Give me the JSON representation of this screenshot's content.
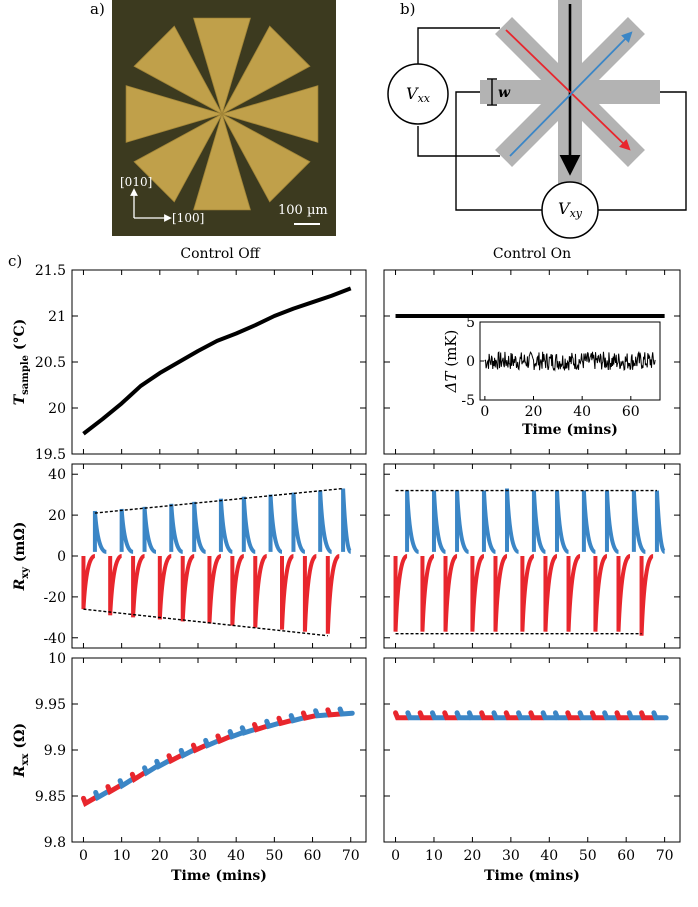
{
  "panel_labels": {
    "a": "a)",
    "b": "b)",
    "c": "c)"
  },
  "micrograph": {
    "axis_vertical": "[010]",
    "axis_horizontal": "[100]",
    "scale_bar": "100 µm"
  },
  "schematic": {
    "vxx_main": "V",
    "vxx_sub": "xx",
    "vxy_main": "V",
    "vxy_sub": "xy",
    "width_label": "w"
  },
  "columns": {
    "left": "Control Off",
    "right": "Control On"
  },
  "chart_data": [
    {
      "id": "tsample",
      "type": "line",
      "ylabel_main": "T",
      "ylabel_sub": "sample",
      "ylabel_unit": " (°C)",
      "ylim": [
        19.5,
        21.5
      ],
      "yticks": [
        "19.5",
        "20",
        "20.5",
        "21",
        "21.5"
      ],
      "ytick_values": [
        19.5,
        20,
        20.5,
        21,
        21.5
      ],
      "off": {
        "x": [
          0,
          5,
          10,
          15,
          20,
          25,
          30,
          35,
          40,
          45,
          50,
          55,
          60,
          65,
          70
        ],
        "y": [
          19.72,
          19.88,
          20.05,
          20.24,
          20.38,
          20.5,
          20.62,
          20.73,
          20.81,
          20.9,
          21.0,
          21.08,
          21.15,
          21.22,
          21.3
        ]
      },
      "on": {
        "x": [
          0,
          70
        ],
        "y": [
          21.0,
          21.0
        ]
      }
    },
    {
      "id": "inset",
      "type": "line",
      "xlabel": "Time (mins)",
      "ylabel_main": "ΔT",
      "ylabel_unit": " (mK)",
      "xlim": [
        -2,
        72
      ],
      "ylim": [
        -5,
        5
      ],
      "xticks": [
        "0",
        "20",
        "40",
        "60"
      ],
      "xtick_values": [
        0,
        20,
        40,
        60
      ],
      "yticks": [
        "-5",
        "0",
        "5"
      ],
      "ytick_values": [
        -5,
        0,
        5
      ],
      "noise_amplitude_mk": 1.2
    },
    {
      "id": "rxy",
      "type": "line",
      "ylabel_main": "R",
      "ylabel_sub": "xy",
      "ylabel_unit": " (mΩ)",
      "ylim": [
        -45,
        45
      ],
      "yticks": [
        "-40",
        "-20",
        "0",
        "20",
        "40"
      ],
      "ytick_values": [
        -40,
        -20,
        0,
        20,
        40
      ],
      "off": {
        "blue_peaks_x": [
          3,
          10,
          16,
          23,
          29,
          36,
          42,
          49,
          55,
          62,
          68
        ],
        "blue_peaks_y": [
          22,
          23,
          24,
          25.5,
          26.5,
          28,
          29,
          30,
          31,
          32,
          33
        ],
        "red_dips_x": [
          0,
          7,
          13,
          20,
          26,
          33,
          39,
          45,
          52,
          58,
          64
        ],
        "red_dips_y": [
          -26,
          -29,
          -30,
          -31,
          -32,
          -33,
          -34,
          -35,
          -36,
          -37,
          -38
        ],
        "upper_envelope": {
          "x": [
            3,
            68
          ],
          "y": [
            21,
            33
          ]
        },
        "lower_envelope": {
          "x": [
            0,
            64
          ],
          "y": [
            -26,
            -39
          ]
        }
      },
      "on": {
        "blue_peaks_x": [
          3,
          10,
          16,
          23,
          29,
          36,
          42,
          49,
          55,
          62,
          68
        ],
        "blue_peaks_y": [
          32,
          32,
          32,
          32,
          33,
          32,
          32,
          32,
          32,
          32,
          32
        ],
        "red_dips_x": [
          0,
          7,
          13,
          20,
          26,
          33,
          39,
          45,
          52,
          58,
          64
        ],
        "red_dips_y": [
          -37,
          -37,
          -37,
          -37,
          -37,
          -37,
          -37,
          -37,
          -37,
          -37,
          -39
        ],
        "upper_envelope": {
          "x": [
            0,
            68
          ],
          "y": [
            32,
            32
          ]
        },
        "lower_envelope": {
          "x": [
            0,
            64
          ],
          "y": [
            -38,
            -38
          ]
        }
      }
    },
    {
      "id": "rxx",
      "type": "line",
      "xlabel": "Time (mins)",
      "ylabel_main": "R",
      "ylabel_sub": "xx",
      "ylabel_unit": " (Ω)",
      "ylim": [
        9.8,
        10.0
      ],
      "yticks": [
        "9.8",
        "9.85",
        "9.9",
        "9.95",
        "10"
      ],
      "ytick_values": [
        9.8,
        9.85,
        9.9,
        9.95,
        10.0
      ],
      "xticks": [
        "0",
        "10",
        "20",
        "30",
        "40",
        "50",
        "60",
        "70"
      ],
      "xtick_values": [
        0,
        10,
        20,
        30,
        40,
        50,
        60,
        70
      ],
      "xlim": [
        -3,
        74
      ],
      "off": {
        "x": [
          0,
          10,
          20,
          30,
          40,
          50,
          60,
          70
        ],
        "y": [
          9.842,
          9.862,
          9.884,
          9.902,
          9.917,
          9.928,
          9.937,
          9.94
        ]
      },
      "on": {
        "x": [
          0,
          70
        ],
        "y": [
          9.935,
          9.935
        ]
      }
    }
  ]
}
